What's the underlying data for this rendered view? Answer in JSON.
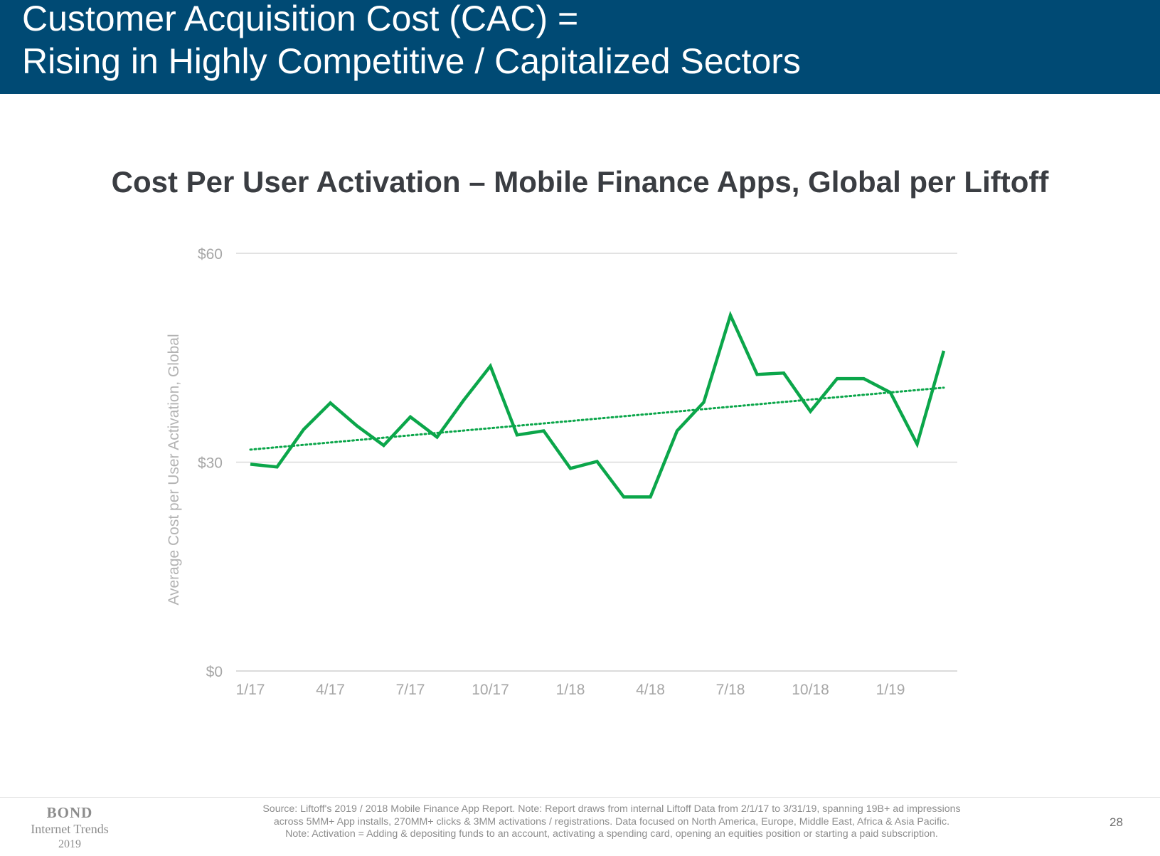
{
  "header": {
    "title_line1": "Customer Acquisition Cost (CAC) =",
    "title_line2": "Rising in Highly Competitive / Capitalized Sectors",
    "background_color": "#004a74"
  },
  "chart_data": {
    "type": "line",
    "title": "Cost Per User Activation – Mobile Finance Apps, Global per Liftoff",
    "ylabel": "Average Cost per User Activation, Global",
    "xlabel": "",
    "ylim": [
      0,
      60
    ],
    "yticks": [
      0,
      30,
      60
    ],
    "ytick_labels": [
      "$0",
      "$30",
      "$60"
    ],
    "x_tick_labels": [
      "1/17",
      "4/17",
      "7/17",
      "10/17",
      "1/18",
      "4/18",
      "7/18",
      "10/18",
      "1/19"
    ],
    "x_tick_positions": [
      0,
      3,
      6,
      9,
      12,
      15,
      18,
      21,
      24
    ],
    "xlim": [
      0,
      26
    ],
    "grid": true,
    "series": [
      {
        "values": [
          29.7,
          29.3,
          34.7,
          38.5,
          35.2,
          32.4,
          36.5,
          33.6,
          38.9,
          43.8,
          33.9,
          34.5,
          29.1,
          30.1,
          25.0,
          25.0,
          34.5,
          38.6,
          51.1,
          42.6,
          42.8,
          37.3,
          42.0,
          42.0,
          40.0,
          32.6,
          46.0
        ],
        "color": "#0ba64a",
        "style": "solid"
      },
      {
        "values_start_end": [
          31.8,
          40.7
        ],
        "color": "#0ba64a",
        "style": "dotted",
        "kind": "trendline"
      }
    ]
  },
  "footer": {
    "brand_name": "BOND",
    "brand_sub": "Internet Trends",
    "brand_year": "2019",
    "source_line1": "Source: Liftoff's 2019 / 2018 Mobile Finance App Report.  Note: Report draws from internal Liftoff Data from 2/1/17 to 3/31/19, spanning 19B+ ad impressions",
    "source_line2": "across 5MM+ App installs, 270MM+ clicks & 3MM activations / registrations.  Data focused on North America, Europe, Middle East, Africa & Asia Pacific.",
    "source_line3": "Note: Activation =  Adding & depositing funds to an account, activating a spending card, opening an equities position or starting a paid subscription.",
    "page_number": "28"
  }
}
